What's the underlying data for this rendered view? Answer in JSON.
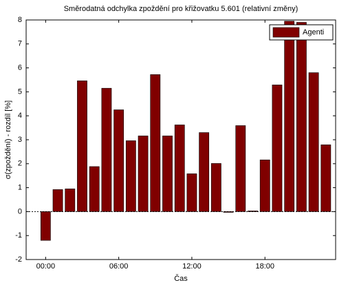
{
  "chart_data": {
    "type": "bar",
    "title": "Směrodatná odchylka zpoždění pro křižovatku 5.601 (relativní změny)",
    "x_label": "Čas",
    "y_label": "σ(zpoždění)  - rozdíl [%]",
    "x": [
      0,
      1,
      2,
      3,
      4,
      5,
      6,
      7,
      8,
      9,
      10,
      11,
      12,
      13,
      14,
      15,
      16,
      17,
      18,
      19,
      20,
      21,
      22,
      23
    ],
    "series": [
      {
        "name": "Agenti",
        "color": "#800000",
        "values": [
          -1.2,
          0.92,
          0.95,
          5.46,
          1.88,
          5.15,
          4.25,
          2.96,
          3.16,
          5.72,
          3.16,
          3.62,
          1.58,
          3.3,
          2.01,
          -0.03,
          3.59,
          0.03,
          2.16,
          5.29,
          7.95,
          7.9,
          5.8,
          2.79
        ]
      }
    ],
    "xlim": [
      -1.6,
      23.8
    ],
    "xticks": [
      {
        "value": 0,
        "label": "00:00"
      },
      {
        "value": 6,
        "label": "06:00"
      },
      {
        "value": 12,
        "label": "12:00"
      },
      {
        "value": 18,
        "label": "18:00"
      }
    ],
    "ylim": [
      -2,
      8
    ],
    "yticks": [
      -2,
      -1,
      0,
      1,
      2,
      3,
      4,
      5,
      6,
      7,
      8
    ],
    "legend": "top-right",
    "grid": false
  }
}
